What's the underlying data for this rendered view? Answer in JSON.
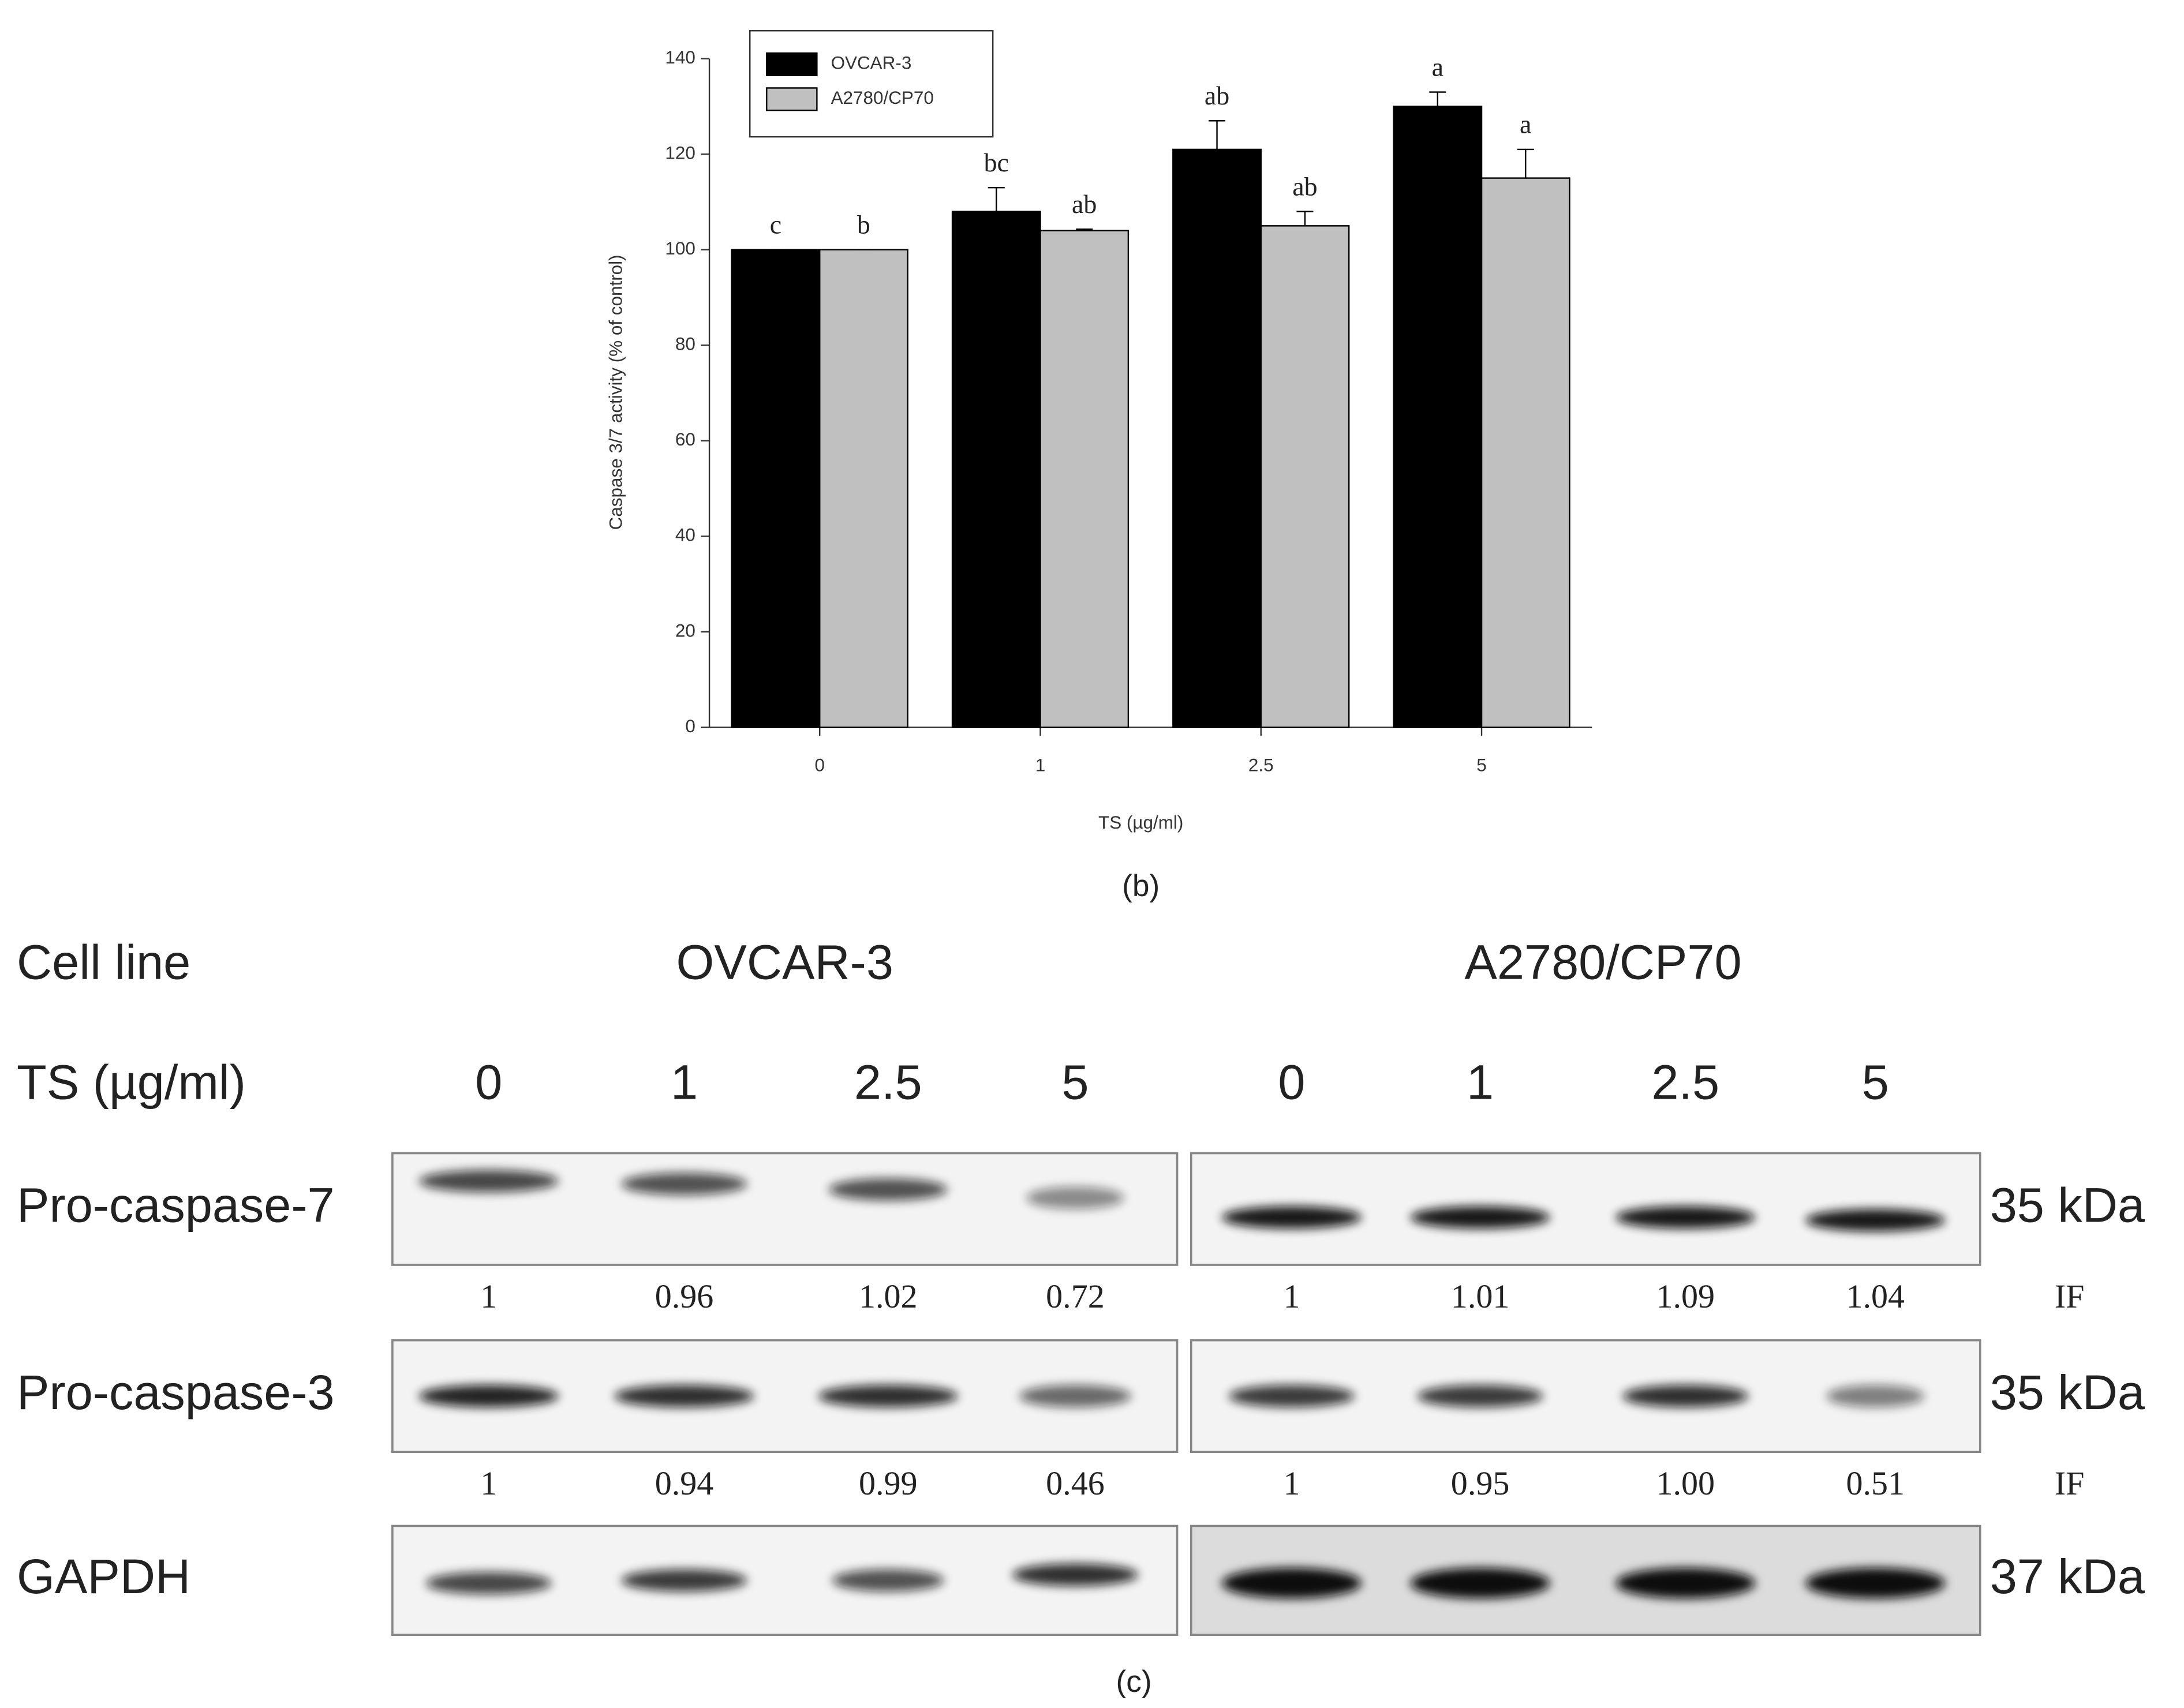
{
  "chart_data": {
    "type": "bar",
    "y_label": "Caspase 3/7 activity (% of control)",
    "x_label": "TS (µg/ml)",
    "caption": "(b)",
    "categories": [
      "0",
      "1",
      "2.5",
      "5"
    ],
    "series": [
      {
        "name": "OVCAR-3",
        "color": "#000000",
        "values": [
          100,
          108,
          121,
          130
        ],
        "errors": [
          0,
          5,
          6,
          3
        ],
        "letters": [
          "c",
          "bc",
          "ab",
          "a"
        ]
      },
      {
        "name": "A2780/CP70",
        "color": "#c0c0c0",
        "values": [
          100,
          104,
          105,
          115
        ],
        "errors": [
          0,
          0.3,
          3,
          6
        ],
        "letters": [
          "b",
          "ab",
          "ab",
          "a"
        ]
      }
    ],
    "ylim": [
      0,
      140
    ],
    "yticks": [
      0,
      20,
      40,
      60,
      80,
      100,
      120,
      140
    ],
    "legend": "top-left"
  },
  "blot": {
    "cell_line_label": "Cell line",
    "cell_lines": [
      "OVCAR-3",
      "A2780/CP70"
    ],
    "dose_label": "TS (µg/ml)",
    "doses": [
      "0",
      "1",
      "2.5",
      "5",
      "0",
      "1",
      "2.5",
      "5"
    ],
    "rows": [
      {
        "label": "Pro-caspase-7",
        "size": "35 kDa",
        "if": [
          "1",
          "0.96",
          "1.02",
          "0.72",
          "1",
          "1.01",
          "1.09",
          "1.04"
        ],
        "if_label": "IF"
      },
      {
        "label": "Pro-caspase-3",
        "size": "35 kDa",
        "if": [
          "1",
          "0.94",
          "0.99",
          "0.46",
          "1",
          "0.95",
          "1.00",
          "0.51"
        ],
        "if_label": "IF"
      },
      {
        "label": "GAPDH",
        "size": "37 kDa"
      }
    ],
    "caption": "(c)"
  }
}
